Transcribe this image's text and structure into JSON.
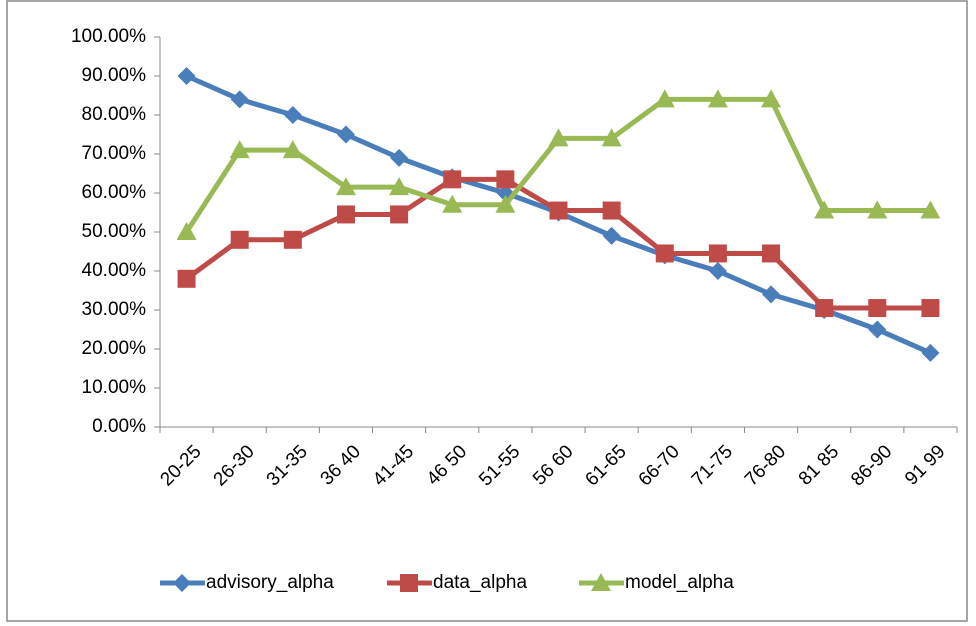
{
  "chart_data": {
    "type": "line",
    "categories": [
      "20-25",
      "26-30",
      "31-35",
      "36 40",
      "41-45",
      "46 50",
      "51-55",
      "56 60",
      "61-65",
      "66-70",
      "71-75",
      "76-80",
      "81 85",
      "86-90",
      "91 99"
    ],
    "series": [
      {
        "name": "advisory_alpha",
        "color": "#4a7ebb",
        "marker": "diamond",
        "values": [
          90,
          84,
          80,
          75,
          69,
          64,
          60,
          55,
          49,
          44,
          40,
          34,
          30,
          25,
          19
        ]
      },
      {
        "name": "data_alpha",
        "color": "#be4b48",
        "marker": "square",
        "values": [
          38,
          48,
          48,
          54.5,
          54.5,
          63.5,
          63.5,
          55.5,
          55.5,
          44.5,
          44.5,
          44.5,
          30.5,
          30.5,
          30.5
        ]
      },
      {
        "name": "model_alpha",
        "color": "#98b954",
        "marker": "triangle",
        "values": [
          50,
          71,
          71,
          61.5,
          61.5,
          57,
          57,
          74,
          74,
          84,
          84,
          84,
          55.5,
          55.5,
          55.5
        ]
      }
    ],
    "ylim": [
      0,
      100
    ],
    "yticks": [
      {
        "value": 0,
        "label": "0.00%"
      },
      {
        "value": 10,
        "label": "10.00%"
      },
      {
        "value": 20,
        "label": "20.00%"
      },
      {
        "value": 30,
        "label": "30.00%"
      },
      {
        "value": 40,
        "label": "40.00%"
      },
      {
        "value": 50,
        "label": "50.00%"
      },
      {
        "value": 60,
        "label": "60.00%"
      },
      {
        "value": 70,
        "label": "70.00%"
      },
      {
        "value": 80,
        "label": "80.00%"
      },
      {
        "value": 90,
        "label": "90.00%"
      },
      {
        "value": 100,
        "label": "100.00%"
      }
    ],
    "legend": "bottom"
  }
}
